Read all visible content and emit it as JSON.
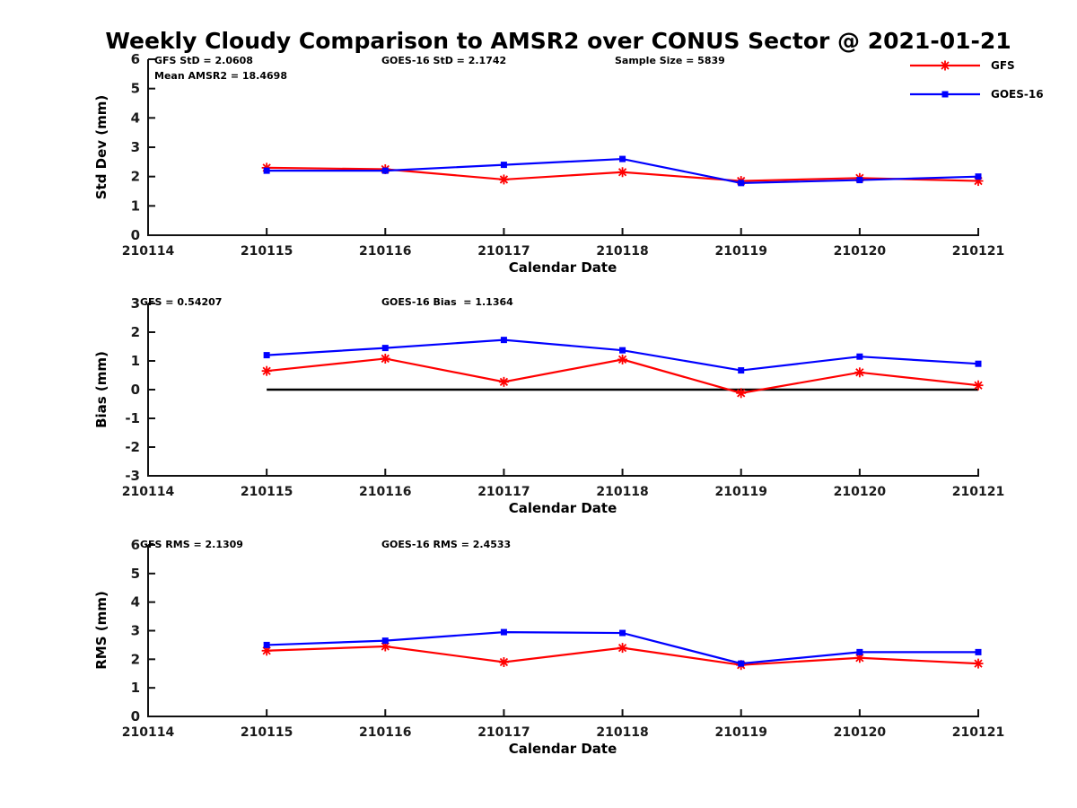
{
  "title": "Weekly Cloudy Comparison to AMSR2 over CONUS Sector @ 2021-01-21",
  "colors": {
    "gfs": "#ff0000",
    "goes16": "#0000ff",
    "axis": "#111111",
    "tick_label": "#1a1a1a",
    "zero_line": "#000000"
  },
  "legend": [
    {
      "label": "GFS",
      "color": "#ff0000",
      "marker": "asterisk"
    },
    {
      "label": "GOES-16",
      "color": "#0000ff",
      "marker": "square"
    }
  ],
  "x_ticks": [
    "210114",
    "210115",
    "210116",
    "210117",
    "210118",
    "210119",
    "210120",
    "210121"
  ],
  "chart_data": [
    {
      "type": "line",
      "name": "std-dev",
      "ylabel": "Std Dev (mm)",
      "xlabel": "Calendar Date",
      "ylim": [
        0,
        6
      ],
      "ytick_step": 1,
      "zero_line": false,
      "annotations": {
        "gfs_std": "GFS StD = 2.0608",
        "mean_amsr2": "Mean AMSR2 = 18.4698",
        "goes_std": "GOES-16 StD = 2.1742",
        "sample_size": "Sample Size = 5839"
      },
      "categories": [
        "210115",
        "210116",
        "210117",
        "210118",
        "210119",
        "210120",
        "210121"
      ],
      "series": [
        {
          "name": "GFS",
          "color": "#ff0000",
          "marker": "asterisk",
          "values": [
            2.3,
            2.25,
            1.9,
            2.15,
            1.85,
            1.95,
            1.85
          ]
        },
        {
          "name": "GOES-16",
          "color": "#0000ff",
          "marker": "square",
          "values": [
            2.2,
            2.2,
            2.4,
            2.6,
            1.78,
            1.88,
            2.0
          ]
        }
      ]
    },
    {
      "type": "line",
      "name": "bias",
      "ylabel": "Bias (mm)",
      "xlabel": "Calendar Date",
      "ylim": [
        -3,
        3
      ],
      "ytick_step": 1,
      "zero_line": true,
      "annotations": {
        "gfs_bias": "GFS = 0.54207",
        "goes_bias": "GOES-16 Bias  = 1.1364"
      },
      "categories": [
        "210115",
        "210116",
        "210117",
        "210118",
        "210119",
        "210120",
        "210121"
      ],
      "series": [
        {
          "name": "GFS",
          "color": "#ff0000",
          "marker": "asterisk",
          "values": [
            0.65,
            1.08,
            0.27,
            1.05,
            -0.12,
            0.6,
            0.15
          ]
        },
        {
          "name": "GOES-16",
          "color": "#0000ff",
          "marker": "square",
          "values": [
            1.2,
            1.45,
            1.73,
            1.37,
            0.67,
            1.15,
            0.9
          ]
        }
      ]
    },
    {
      "type": "line",
      "name": "rms",
      "ylabel": "RMS (mm)",
      "xlabel": "Calendar Date",
      "ylim": [
        0,
        6
      ],
      "ytick_step": 1,
      "zero_line": false,
      "annotations": {
        "gfs_rms": "GFS RMS = 2.1309",
        "goes_rms": "GOES-16 RMS = 2.4533"
      },
      "categories": [
        "210115",
        "210116",
        "210117",
        "210118",
        "210119",
        "210120",
        "210121"
      ],
      "series": [
        {
          "name": "GFS",
          "color": "#ff0000",
          "marker": "asterisk",
          "values": [
            2.3,
            2.45,
            1.9,
            2.4,
            1.8,
            2.05,
            1.85
          ]
        },
        {
          "name": "GOES-16",
          "color": "#0000ff",
          "marker": "square",
          "values": [
            2.5,
            2.65,
            2.95,
            2.92,
            1.85,
            2.25,
            2.25
          ]
        }
      ]
    }
  ]
}
